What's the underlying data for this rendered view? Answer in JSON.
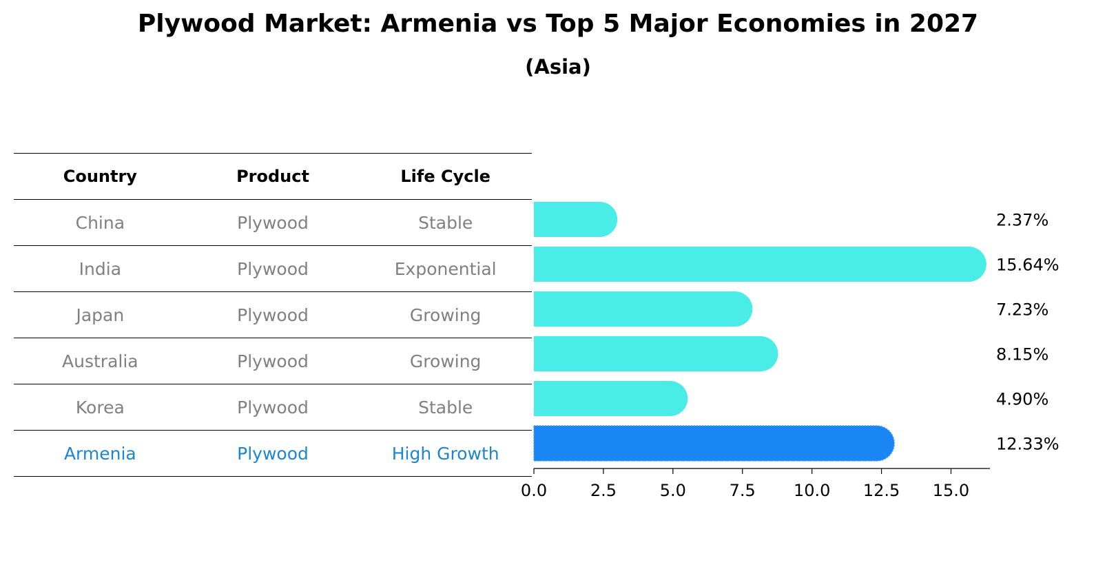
{
  "title": "Plywood Market: Armenia vs Top 5 Major Economies in 2027",
  "subtitle": "(Asia)",
  "table": {
    "headers": [
      "Country",
      "Product",
      "Life Cycle"
    ],
    "rows": [
      {
        "country": "China",
        "product": "Plywood",
        "life_cycle": "Stable"
      },
      {
        "country": "India",
        "product": "Plywood",
        "life_cycle": "Exponential"
      },
      {
        "country": "Japan",
        "product": "Plywood",
        "life_cycle": "Growing"
      },
      {
        "country": "Australia",
        "product": "Plywood",
        "life_cycle": "Growing"
      },
      {
        "country": "Korea",
        "product": "Plywood",
        "life_cycle": "Stable"
      },
      {
        "country": "Armenia",
        "product": "Plywood",
        "life_cycle": "High Growth"
      }
    ]
  },
  "chart_data": {
    "type": "bar",
    "orientation": "horizontal",
    "title": "Plywood Market: Armenia vs Top 5 Major Economies in 2027",
    "subtitle": "(Asia)",
    "categories": [
      "China",
      "India",
      "Japan",
      "Australia",
      "Korea",
      "Armenia"
    ],
    "values": [
      2.37,
      15.64,
      7.23,
      8.15,
      4.9,
      12.33
    ],
    "value_labels": [
      "2.37%",
      "15.64%",
      "7.23%",
      "8.15%",
      "4.90%",
      "12.33%"
    ],
    "highlight": "Armenia",
    "xlim": [
      0,
      16.4
    ],
    "xticks": [
      0.0,
      2.5,
      5.0,
      7.5,
      10.0,
      12.5,
      15.0
    ],
    "xtick_labels": [
      "0.0",
      "2.5",
      "5.0",
      "7.5",
      "10.0",
      "12.5",
      "15.0"
    ],
    "colors": {
      "default": "#4aece8",
      "highlight": "#1a86f5",
      "highlight_text": "#1a86d4"
    }
  }
}
